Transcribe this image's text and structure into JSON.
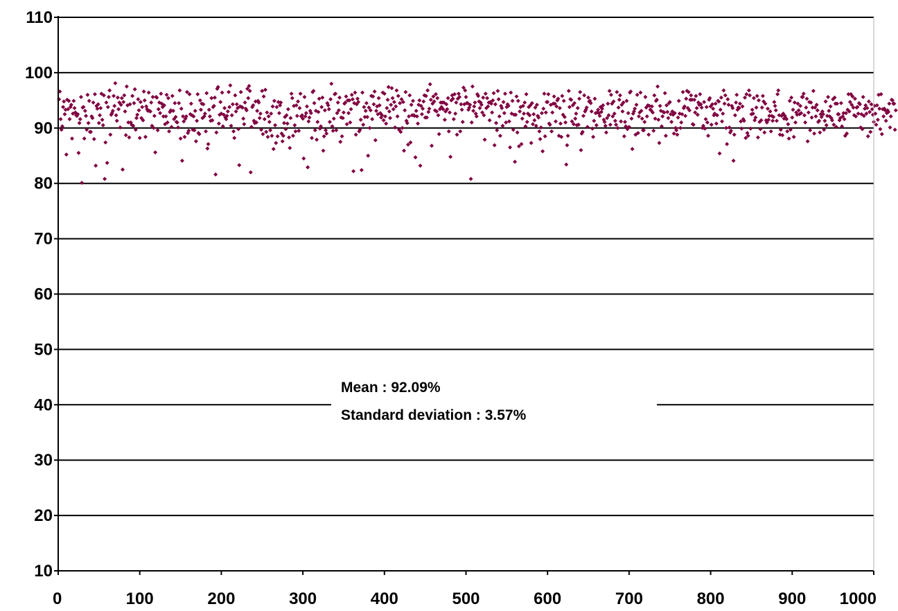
{
  "chart_data": {
    "type": "scatter",
    "title": "",
    "xlabel": "",
    "ylabel": "",
    "xlim": [
      0,
      1000
    ],
    "ylim": [
      10,
      110
    ],
    "x_ticks": [
      "0",
      "100",
      "200",
      "300",
      "400",
      "500",
      "600",
      "700",
      "800",
      "900",
      "1000"
    ],
    "y_ticks": [
      "10",
      "20",
      "30",
      "40",
      "50",
      "60",
      "70",
      "80",
      "90",
      "100",
      "110"
    ],
    "grid": true,
    "marker_color": "#800040",
    "annotation": {
      "mean_label": "Mean : 92.09%",
      "std_label": "Standard deviation : 3.57%"
    },
    "series": [
      {
        "x_start": 1,
        "x_step": 1,
        "values": [
          95.2,
          96.6,
          91.6,
          89.7,
          90.3,
          93.8,
          94.8,
          92.5,
          93.3,
          85.2,
          95.1,
          93.4,
          94.9,
          91.6,
          93.8,
          94.2,
          88.1,
          92.6,
          94.9,
          93.6,
          92.8,
          92.3,
          92.2,
          92.5,
          85.5,
          90.9,
          91.6,
          95.6,
          80.1,
          93.7,
          93.8,
          88.1,
          93.1,
          92.2,
          89.7,
          96.0,
          90.9,
          94.9,
          89.3,
          89.3,
          92.1,
          91.8,
          94.6,
          88.0,
          96.1,
          83.2,
          94.0,
          93.5,
          94.3,
          90.9,
          92.3,
          93.6,
          96.2,
          91.5,
          90.5,
          95.9,
          80.8,
          87.4,
          94.6,
          83.7,
          93.8,
          95.6,
          96.8,
          88.8,
          92.4,
          92.7,
          93.1,
          95.8,
          94.0,
          98.1,
          92.3,
          91.3,
          95.5,
          93.4,
          94.6,
          90.1,
          94.2,
          95.4,
          82.5,
          94.7,
          95.9,
          93.0,
          88.7,
          97.5,
          94.1,
          91.0,
          88.3,
          94.3,
          91.0,
          90.6,
          95.8,
          90.4,
          94.5,
          97.0,
          89.7,
          91.8,
          92.4,
          95.2,
          93.2,
          88.2,
          94.7,
          91.8,
          93.8,
          91.4,
          96.6,
          95.0,
          88.4,
          93.9,
          93.4,
          93.1,
          96.4,
          93.1,
          93.0,
          94.6,
          90.4,
          95.6,
          90.0,
          92.2,
          85.6,
          95.6,
          95.5,
          89.6,
          93.4,
          94.6,
          92.7,
          96.2,
          94.4,
          93.8,
          92.1,
          94.1,
          90.7,
          92.1,
          96.0,
          91.0,
          95.4,
          89.4,
          92.9,
          93.2,
          90.2,
          95.8,
          93.1,
          91.6,
          94.5,
          92.0,
          91.1,
          91.0,
          90.1,
          94.5,
          96.8,
          88.1,
          93.5,
          84.1,
          92.1,
          91.2,
          88.4,
          91.7,
          92.1,
          96.5,
          89.1,
          89.5,
          96.1,
          92.5,
          94.4,
          92.3,
          89.7,
          92.1,
          89.6,
          93.1,
          87.6,
          91.3,
          96.1,
          89.1,
          88.9,
          95.0,
          93.3,
          94.4,
          91.8,
          94.3,
          92.1,
          92.6,
          89.4,
          96.3,
          86.3,
          87.1,
          93.3,
          92.1,
          91.3,
          95.4,
          91.4,
          93.8,
          94.0,
          95.5,
          81.6,
          89.2,
          97.1,
          97.4,
          90.8,
          92.4,
          94.7,
          92.6,
          96.4,
          90.3,
          92.4,
          93.6,
          91.9,
          91.6,
          92.2,
          93.0,
          96.5,
          93.8,
          97.7,
          90.4,
          92.3,
          94.3,
          89.4,
          88.2,
          95.9,
          93.0,
          94.3,
          93.6,
          89.8,
          83.3,
          93.9,
          96.5,
          93.8,
          93.7,
          91.7,
          90.7,
          94.6,
          93.5,
          93.2,
          97.1,
          95.4,
          97.6,
          96.7,
          82.0,
          90.2,
          93.8,
          94.1,
          91.3,
          90.9,
          94.8,
          91.0,
          93.1,
          94.9,
          94.6,
          91.8,
          92.6,
          89.7,
          96.7,
          88.9,
          95.7,
          91.6,
          96.9,
          89.3,
          92.8,
          88.4,
          92.1,
          91.1,
          89.6,
          92.6,
          88.6,
          93.9,
          86.2,
          94.9,
          90.5,
          87.3,
          93.8,
          88.5,
          94.7,
          92.7,
          94.1,
          94.6,
          89.0,
          87.6,
          88.6,
          90.9,
          92.0,
          89.8,
          92.3,
          90.8,
          93.4,
          88.3,
          86.4,
          91.8,
          96.2,
          95.4,
          88.6,
          94.0,
          90.5,
          89.4,
          94.1,
          92.2,
          94.8,
          89.5,
          93.6,
          96.2,
          92.1,
          92.3,
          91.7,
          84.5,
          95.6,
          92.1,
          92.7,
          93.9,
          82.9,
          91.2,
          91.9,
          93.1,
          92.7,
          88.2,
          96.5,
          96.7,
          94.5,
          89.6,
          93.1,
          87.9,
          91.1,
          92.9,
          95.3,
          89.9,
          90.3,
          93.8,
          95.5,
          85.9,
          88.5,
          93.2,
          89.6,
          89.0,
          94.5,
          94.1,
          93.4,
          91.1,
          95.2,
          98.0,
          90.3,
          89.5,
          91.7,
          96.1,
          96.2,
          89.6,
          92.7,
          94.6,
          93.2,
          95.5,
          87.5,
          91.9,
          88.5,
          91.8,
          92.8,
          94.4,
          94.6,
          95.7,
          90.7,
          95.0,
          92.7,
          95.0,
          91.0,
          93.4,
          96.0,
          95.2,
          82.2,
          94.5,
          96.4,
          88.8,
          94.3,
          95.3,
          94.7,
          89.4,
          89.7,
          91.5,
          82.4,
          96.4,
          90.6,
          93.8,
          92.0,
          93.1,
          94.5,
          92.0,
          85.0,
          93.7,
          90.0,
          93.2,
          95.8,
          91.6,
          95.7,
          94.3,
          96.6,
          87.8,
          93.1,
          93.9,
          92.5,
          95.4,
          94.1,
          92.7,
          91.9,
          92.3,
          96.4,
          91.4,
          96.2,
          92.1,
          90.8,
          93.6,
          95.1,
          97.4,
          93.0,
          91.8,
          94.2,
          97.2,
          95.4,
          93.4,
          94.7,
          90.1,
          93.9,
          96.8,
          92.1,
          95.8,
          89.7,
          94.5,
          89.3,
          95.2,
          90.0,
          94.7,
          85.9,
          93.2,
          96.5,
          91.3,
          90.9,
          87.0,
          92.1,
          95.9,
          87.4,
          94.2,
          92.3,
          94.9,
          92.3,
          92.2,
          84.7,
          93.1,
          92.1,
          90.8,
          94.2,
          95.0,
          83.2,
          94.0,
          92.5,
          93.5,
          94.8,
          95.9,
          91.9,
          95.8,
          91.9,
          96.8,
          92.9,
          93.5,
          97.9,
          95.1,
          86.8,
          94.4,
          95.7,
          94.8,
          93.2,
          96.1,
          93.0,
          95.4,
          92.3,
          88.9,
          93.4,
          94.6,
          93.8,
          94.6,
          93.4,
          94.6,
          91.5,
          93.0,
          94.3,
          93.4,
          95.4,
          89.4,
          92.8,
          84.8,
          95.0,
          95.9,
          95.3,
          91.6,
          96.1,
          92.6,
          94.6,
          88.8,
          95.3,
          96.2,
          95.6,
          89.4,
          94.3,
          93.3,
          91.1,
          97.3,
          94.3,
          96.8,
          95.6,
          94.5,
          94.5,
          93.3,
          93.7,
          94.2,
          80.8,
          91.0,
          97.5,
          93.1,
          93.9,
          94.6,
          92.6,
          92.1,
          96.1,
          95.8,
          94.8,
          93.6,
          94.6,
          94.2,
          92.8,
          95.5,
          92.3,
          87.9,
          96.2,
          93.6,
          95.4,
          93.9,
          94.6,
          91.4,
          94.7,
          94.4,
          92.8,
          95.0,
          96.3,
          86.9,
          94.3,
          90.9,
          89.6,
          96.7,
          95.2,
          92.1,
          88.6,
          94.0,
          93.6,
          90.4,
          94.7,
          92.7,
          96.2,
          91.0,
          93.8,
          94.3,
          94.0,
          91.2,
          86.5,
          96.4,
          92.6,
          94.9,
          89.7,
          92.4,
          83.9,
          92.4,
          95.7,
          89.2,
          94.9,
          86.7,
          93.0,
          93.8,
          87.1,
          91.7,
          94.0,
          92.6,
          94.6,
          90.3,
          96.1,
          91.1,
          92.6,
          93.8,
          92.3,
          94.1,
          87.3,
          94.5,
          90.7,
          92.5,
          91.4,
          93.7,
          90.4,
          94.2,
          92.2,
          91.9,
          89.4,
          88.0,
          90.1,
          92.7,
          85.8,
          93.5,
          96.2,
          88.5,
          92.8,
          94.7,
          94.7,
          96.1,
          90.8,
          90.6,
          94.2,
          89.4,
          92.8,
          94.4,
          95.7,
          94.4,
          91.2,
          93.9,
          95.0,
          95.3,
          88.6,
          93.6,
          90.8,
          88.4,
          95.8,
          92.4,
          94.9,
          92.0,
          91.0,
          83.4,
          86.9,
          88.6,
          96.7,
          93.8,
          95.2,
          95.1,
          91.2,
          94.1,
          90.7,
          94.5,
          91.7,
          92.6,
          90.5,
          93.6,
          90.6,
          95.3,
          96.5,
          86.0,
          89.0,
          89.3,
          92.2,
          95.9,
          93.0,
          93.3,
          93.7,
          90.2,
          95.5,
          94.8,
          94.9,
          94.5,
          93.0,
          89.9,
          88.4,
          91.3,
          95.3,
          92.7,
          90.5,
          92.8,
          93.3,
          92.7,
          92.2,
          93.8,
          92.9,
          93.5,
          94.1,
          91.5,
          91.1,
          90.4,
          89.2,
          91.8,
          94.4,
          92.3,
          96.7,
          90.6,
          96.0,
          94.4,
          92.1,
          94.8,
          92.6,
          91.3,
          90.6,
          96.5,
          90.0,
          93.7,
          95.1,
          95.9,
          91.2,
          94.2,
          93.0,
          94.6,
          88.5,
          91.1,
          90.3,
          94.9,
          89.8,
          92.7,
          90.2,
          96.4,
          96.6,
          91.7,
          86.2,
          92.6,
          93.0,
          93.5,
          88.8,
          94.2,
          96.0,
          89.1,
          92.1,
          92.8,
          96.4,
          93.1,
          91.7,
          89.6,
          89.6,
          91.1,
          95.6,
          93.7,
          92.1,
          94.1,
          88.8,
          94.0,
          93.3,
          93.2,
          93.9,
          92.8,
          89.5,
          95.9,
          91.7,
          94.9,
          95.1,
          97.5,
          91.5,
          87.3,
          94.0,
          93.1,
          90.3,
          92.1,
          92.9,
          92.8,
          96.3,
          88.6,
          94.1,
          92.9,
          91.8,
          94.5,
          94.7,
          92.5,
          91.1,
          93.0,
          92.4,
          89.0,
          92.7,
          90.0,
          89.6,
          88.8,
          91.9,
          94.9,
          92.6,
          90.0,
          91.0,
          92.5,
          96.5,
          93.6,
          93.9,
          92.2,
          95.3,
          96.7,
          93.6,
          96.5,
          93.2,
          95.1,
          95.9,
          95.1,
          90.7,
          90.6,
          95.1,
          92.8,
          95.8,
          93.6,
          92.4,
          94.6,
          94.2,
          96.1,
          94.3,
          93.7,
          90.0,
          90.4,
          94.7,
          89.9,
          91.6,
          93.8,
          91.0,
          88.6,
          95.1,
          95.4,
          93.9,
          90.6,
          94.3,
          93.5,
          92.3,
          92.6,
          94.4,
          90.8,
          92.3,
          94.9,
          94.8,
          85.4,
          93.3,
          95.5,
          91.2,
          92.6,
          96.8,
          94.4,
          95.9,
          90.0,
          87.1,
          95.2,
          94.2,
          90.1,
          89.2,
          89.5,
          94.0,
          93.6,
          84.1,
          88.8,
          92.3,
          94.6,
          96.0,
          93.3,
          93.7,
          93.6,
          94.4,
          91.2,
          89.9,
          93.9,
          91.6,
          91.3,
          95.5,
          88.2,
          96.1,
          89.1,
          88.6,
          96.8,
          95.9,
          89.9,
          92.5,
          93.3,
          92.6,
          95.4,
          91.4,
          91.9,
          93.7,
          95.8,
          88.3,
          95.0,
          91.1,
          89.8,
          91.4,
          93.7,
          95.8,
          94.8,
          89.2,
          94.4,
          91.4,
          91.0,
          93.5,
          91.5,
          92.2,
          93.0,
          89.4,
          92.2,
          91.3,
          92.0,
          94.7,
          94.0,
          93.2,
          91.3,
          96.1,
          96.8,
          92.3,
          88.8,
          89.7,
          92.2,
          88.7,
          92.6,
          91.7,
          92.2,
          91.8,
          91.6,
          89.4,
          90.7,
          88.1,
          94.9,
          89.7,
          95.5,
          91.9,
          93.3,
          88.4,
          94.6,
          91.0,
          92.8,
          92.4,
          94.4,
          93.2,
          92.5,
          94.0,
          92.7,
          95.6,
          95.6,
          96.2,
          92.3,
          91.0,
          93.7,
          95.3,
          87.6,
          92.8,
          94.7,
          89.6,
          94.6,
          91.9,
          93.7,
          96.7,
          89.0,
          93.7,
          92.1,
          94.2,
          93.2,
          91.1,
          91.3,
          89.2,
          92.5,
          92.0,
          93.0,
          92.5,
          89.7,
          91.3,
          94.8,
          90.5,
          92.2,
          95.6,
          93.1,
          92.1,
          93.9,
          91.8,
          91.4,
          95.2,
          90.6,
          95.5,
          94.4,
          90.2,
          94.4,
          92.5,
          92.5,
          91.4,
          91.8,
          94.5,
          90.3,
          92.1,
          92.7,
          91.6,
          88.6,
          92.7,
          89.0,
          93.3,
          96.1,
          93.0,
          94.7,
          96.1,
          94.2,
          95.7,
          93.7,
          92.3,
          95.3,
          92.1,
          93.7,
          93.8,
          92.6,
          94.5,
          94.3,
          90.1,
          92.5,
          89.8,
          95.6,
          92.2,
          93.5,
          94.1,
          92.6,
          93.6,
          88.5,
          94.8,
          92.9,
          89.3,
          94.3,
          93.4,
          92.4,
          91.1,
          94.0,
          92.6,
          90.6,
          94.1,
          91.5,
          96.0,
          93.5,
          89.8,
          96.1,
          88.9,
          93.4,
          92.1,
          93.5,
          93.2,
          91.3,
          92.7,
          93.2,
          92.9,
          94.4,
          90.1,
          92.1,
          95.1,
          95.0,
          94.4,
          94.4,
          89.7,
          93.2
        ]
      }
    ]
  }
}
